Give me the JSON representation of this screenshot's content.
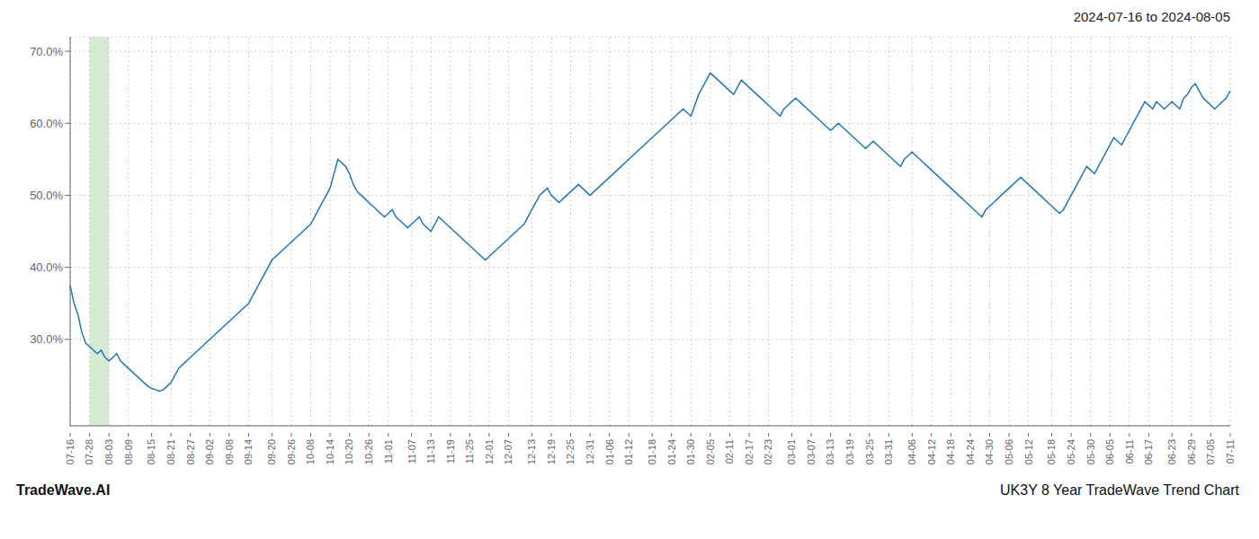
{
  "chart_data": {
    "type": "line",
    "title": "2024-07-16 to 2024-08-05",
    "annotations": [
      "TradeWave.AI",
      "UK3Y 8 Year TradeWave Trend Chart"
    ],
    "categories": [
      "07-16",
      null,
      null,
      null,
      null,
      "07-28",
      null,
      null,
      null,
      null,
      "08-03",
      null,
      null,
      null,
      null,
      "08-09",
      null,
      null,
      null,
      null,
      null,
      "08-15",
      null,
      null,
      null,
      null,
      "08-21",
      null,
      null,
      null,
      null,
      "08-27",
      null,
      null,
      null,
      null,
      "09-02",
      null,
      null,
      null,
      null,
      "09-08",
      null,
      null,
      null,
      null,
      "09-14",
      null,
      null,
      null,
      null,
      null,
      "09-20",
      null,
      null,
      null,
      null,
      "09-26",
      null,
      null,
      null,
      null,
      "10-08",
      null,
      null,
      null,
      null,
      "10-14",
      null,
      null,
      null,
      null,
      "10-20",
      null,
      null,
      null,
      null,
      "10-26",
      null,
      null,
      null,
      null,
      "11-01",
      null,
      null,
      null,
      null,
      null,
      "11-07",
      null,
      null,
      null,
      null,
      "11-13",
      null,
      null,
      null,
      null,
      "11-19",
      null,
      null,
      null,
      null,
      "11-25",
      null,
      null,
      null,
      null,
      "12-01",
      null,
      null,
      null,
      null,
      "12-07",
      null,
      null,
      null,
      null,
      null,
      "12-13",
      null,
      null,
      null,
      null,
      "12-19",
      null,
      null,
      null,
      null,
      "12-25",
      null,
      null,
      null,
      null,
      "12-31",
      null,
      null,
      null,
      null,
      "01-06",
      null,
      null,
      null,
      null,
      "01-12",
      null,
      null,
      null,
      null,
      null,
      "01-18",
      null,
      null,
      null,
      null,
      "01-24",
      null,
      null,
      null,
      null,
      "01-30",
      null,
      null,
      null,
      null,
      "02-05",
      null,
      null,
      null,
      null,
      "02-11",
      null,
      null,
      null,
      null,
      "02-17",
      null,
      null,
      null,
      null,
      "02-23",
      null,
      null,
      null,
      null,
      null,
      "03-01",
      null,
      null,
      null,
      null,
      "03-07",
      null,
      null,
      null,
      null,
      "03-13",
      null,
      null,
      null,
      null,
      "03-19",
      null,
      null,
      null,
      null,
      "03-25",
      null,
      null,
      null,
      null,
      "03-31",
      null,
      null,
      null,
      null,
      null,
      "04-06",
      null,
      null,
      null,
      null,
      "04-12",
      null,
      null,
      null,
      null,
      "04-18",
      null,
      null,
      null,
      null,
      "04-24",
      null,
      null,
      null,
      null,
      "04-30",
      null,
      null,
      null,
      null,
      "05-06",
      null,
      null,
      null,
      null,
      "05-12",
      null,
      null,
      null,
      null,
      null,
      "05-18",
      null,
      null,
      null,
      null,
      "05-24",
      null,
      null,
      null,
      null,
      "05-30",
      null,
      null,
      null,
      null,
      "06-05",
      null,
      null,
      null,
      null,
      "06-11",
      null,
      null,
      null,
      null,
      "06-17",
      null,
      null,
      null,
      null,
      null,
      "06-23",
      null,
      null,
      null,
      null,
      "06-29",
      null,
      null,
      null,
      null,
      "07-05",
      null,
      null,
      null,
      null,
      "07-11"
    ],
    "values": [
      37.5,
      35.0,
      33.5,
      31.0,
      29.5,
      29.0,
      28.5,
      28.0,
      28.5,
      27.5,
      27.0,
      27.5,
      28.0,
      27.0,
      26.5,
      26.0,
      25.5,
      25.0,
      24.5,
      24.0,
      23.5,
      23.2,
      23.0,
      22.8,
      23.0,
      23.5,
      24.0,
      25.0,
      26.0,
      26.5,
      27.0,
      27.5,
      28.0,
      28.5,
      29.0,
      29.5,
      30.0,
      30.5,
      31.0,
      31.5,
      32.0,
      32.5,
      33.0,
      33.5,
      34.0,
      34.5,
      35.0,
      36.0,
      37.0,
      38.0,
      39.0,
      40.0,
      41.0,
      41.5,
      42.0,
      42.5,
      43.0,
      43.5,
      44.0,
      44.5,
      45.0,
      45.5,
      46.0,
      47.0,
      48.0,
      49.0,
      50.0,
      51.0,
      53.0,
      55.0,
      54.5,
      54.0,
      53.0,
      51.5,
      50.5,
      50.0,
      49.5,
      49.0,
      48.5,
      48.0,
      47.5,
      47.0,
      47.5,
      48.0,
      47.0,
      46.5,
      46.0,
      45.5,
      46.0,
      46.5,
      47.0,
      46.0,
      45.5,
      45.0,
      46.0,
      47.0,
      46.5,
      46.0,
      45.5,
      45.0,
      44.5,
      44.0,
      43.5,
      43.0,
      42.5,
      42.0,
      41.5,
      41.0,
      41.5,
      42.0,
      42.5,
      43.0,
      43.5,
      44.0,
      44.5,
      45.0,
      45.5,
      46.0,
      47.0,
      48.0,
      49.0,
      50.0,
      50.5,
      51.0,
      50.0,
      49.5,
      49.0,
      49.5,
      50.0,
      50.5,
      51.0,
      51.5,
      51.0,
      50.5,
      50.0,
      50.5,
      51.0,
      51.5,
      52.0,
      52.5,
      53.0,
      53.5,
      54.0,
      54.5,
      55.0,
      55.5,
      56.0,
      56.5,
      57.0,
      57.5,
      58.0,
      58.5,
      59.0,
      59.5,
      60.0,
      60.5,
      61.0,
      61.5,
      62.0,
      61.5,
      61.0,
      62.5,
      64.0,
      65.0,
      66.0,
      67.0,
      66.5,
      66.0,
      65.5,
      65.0,
      64.5,
      64.0,
      65.0,
      66.0,
      65.5,
      65.0,
      64.5,
      64.0,
      63.5,
      63.0,
      62.5,
      62.0,
      61.5,
      61.0,
      62.0,
      62.5,
      63.0,
      63.5,
      63.0,
      62.5,
      62.0,
      61.5,
      61.0,
      60.5,
      60.0,
      59.5,
      59.0,
      59.5,
      60.0,
      59.5,
      59.0,
      58.5,
      58.0,
      57.5,
      57.0,
      56.5,
      57.0,
      57.5,
      57.0,
      56.5,
      56.0,
      55.5,
      55.0,
      54.5,
      54.0,
      55.0,
      55.5,
      56.0,
      55.5,
      55.0,
      54.5,
      54.0,
      53.5,
      53.0,
      52.5,
      52.0,
      51.5,
      51.0,
      50.5,
      50.0,
      49.5,
      49.0,
      48.5,
      48.0,
      47.5,
      47.0,
      48.0,
      48.5,
      49.0,
      49.5,
      50.0,
      50.5,
      51.0,
      51.5,
      52.0,
      52.5,
      52.0,
      51.5,
      51.0,
      50.5,
      50.0,
      49.5,
      49.0,
      48.5,
      48.0,
      47.5,
      48.0,
      49.0,
      50.0,
      51.0,
      52.0,
      53.0,
      54.0,
      53.5,
      53.0,
      54.0,
      55.0,
      56.0,
      57.0,
      58.0,
      57.5,
      57.0,
      58.0,
      59.0,
      60.0,
      61.0,
      62.0,
      63.0,
      62.5,
      62.0,
      63.0,
      62.5,
      62.0,
      62.5,
      63.0,
      62.5,
      62.0,
      63.5,
      64.0,
      65.0,
      65.5,
      64.5,
      63.5,
      63.0,
      62.5,
      62.0,
      62.5,
      63.0,
      63.5,
      64.5
    ],
    "color": "#1f77b4",
    "highlight": {
      "start": "07-28",
      "end": "08-03",
      "color": "#d6ecd2"
    },
    "ylim": [
      18,
      72
    ],
    "yticks": [
      {
        "value": 30,
        "label": "30.0%"
      },
      {
        "value": 40,
        "label": "40.0%"
      },
      {
        "value": 50,
        "label": "50.0%"
      },
      {
        "value": 60,
        "label": "60.0%"
      },
      {
        "value": 70,
        "label": "70.0%"
      }
    ],
    "grid": true
  }
}
